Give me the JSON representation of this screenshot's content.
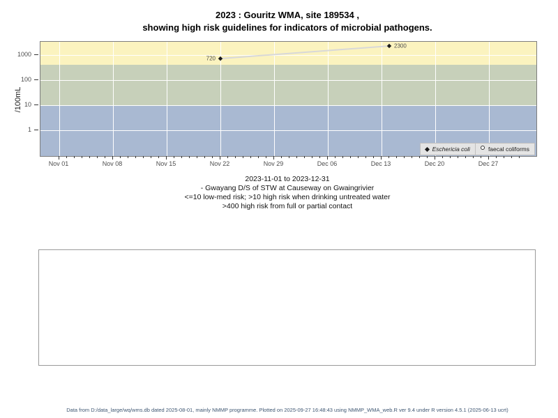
{
  "title": {
    "line1": "2023 : Gouritz WMA, site 189534 ,",
    "line2": "showing high risk guidelines for indicators of microbial pathogens."
  },
  "subtitle": {
    "lines": [
      "2023-11-01 to 2023-12-31",
      "- Gwayang D/S of STW at Causeway on Gwaingrivier",
      "<=10 low-med risk; >10 high risk when drinking untreated water",
      ">400 high risk from full or partial contact"
    ]
  },
  "footer": {
    "text": "Data from D:/data_large/wq/wms.db dated 2025-08-01, mainly NMMP programme. Plotted on 2025-09-27 16:48:43 using NMMP_WMA_web.R ver 9.4 under R version 4.5.1 (2025-06-13 ucrt)"
  },
  "chart_data": {
    "type": "scatter",
    "title": "2023 : Gouritz WMA, site 189534 , showing high risk guidelines for indicators of microbial pathogens.",
    "xlabel": "",
    "ylabel": "/100mL",
    "y_scale": "log10",
    "ylim": [
      0.1,
      3400
    ],
    "x_range": [
      "2023-11-01",
      "2023-12-31"
    ],
    "grid": "white lines on colored risk bands",
    "legend_position": "bottom-right inside plot",
    "x_axis": {
      "ticks": [
        {
          "day": 0,
          "label": "Nov 01"
        },
        {
          "day": 7,
          "label": "Nov 08"
        },
        {
          "day": 14,
          "label": "Nov 15"
        },
        {
          "day": 21,
          "label": "Nov 22"
        },
        {
          "day": 28,
          "label": "Nov 29"
        },
        {
          "day": 35,
          "label": "Dec 06"
        },
        {
          "day": 42,
          "label": "Dec 13"
        },
        {
          "day": 49,
          "label": "Dec 20"
        },
        {
          "day": 56,
          "label": "Dec 27"
        }
      ],
      "minor_tick_days": [
        0,
        60
      ]
    },
    "y_axis": {
      "label": "/100mL",
      "ticks": [
        {
          "value": 1000,
          "label": "1000"
        },
        {
          "value": 100,
          "label": "100"
        },
        {
          "value": 10,
          "label": "10"
        },
        {
          "value": 1,
          "label": "1"
        }
      ]
    },
    "bands": [
      {
        "name": "high-risk-above-400",
        "min": 400,
        "max": null,
        "color": "#fbf3bf"
      },
      {
        "name": "medium-risk-10-400",
        "min": 10,
        "max": 400,
        "color": "#c7d0ba"
      },
      {
        "name": "low-risk-below-10",
        "min": null,
        "max": 10,
        "color": "#a9b9d2"
      }
    ],
    "series": [
      {
        "name": "Eschericia coli",
        "marker": "filled-diamond",
        "marker_color": "#1a1a1a",
        "line_color": "#d8d8d8",
        "points": [
          {
            "date": "2023-11-22",
            "day": 21,
            "value": 720,
            "label": "720",
            "label_side": "left"
          },
          {
            "date": "2023-12-14",
            "day": 43,
            "value": 2300,
            "label": "2300",
            "label_side": "right"
          }
        ]
      },
      {
        "name": "faecal coliforms",
        "marker": "open-circle",
        "marker_color": "#333333",
        "points": []
      }
    ]
  }
}
